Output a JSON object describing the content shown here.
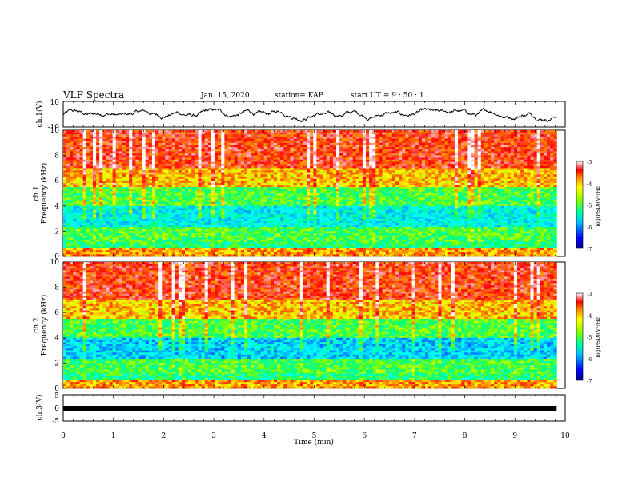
{
  "header": {
    "title": "VLF Spectra",
    "date": "Jan. 15, 2020",
    "station": "station= KAP",
    "start": "start  UT =   9 : 50 : 1"
  },
  "colors": {
    "colormap": [
      "#000080",
      "#0000ff",
      "#00a0ff",
      "#00ffff",
      "#00ff80",
      "#80ff00",
      "#ffff00",
      "#ff8000",
      "#ff0000",
      "#ffffff"
    ],
    "trace": "#000000"
  },
  "chart_data": [
    {
      "type": "line",
      "ylabel": "ch.1(V)",
      "xlim": [
        0,
        10
      ],
      "ylim": [
        -10,
        10
      ],
      "yticks": [
        "10",
        "-10"
      ],
      "note": "continuous waveform, roughly between -5 and 5 V"
    },
    {
      "type": "heatmap",
      "ylabel": "ch.1\nFrequency (kHz)",
      "xlim": [
        0,
        10
      ],
      "ylim": [
        0,
        10
      ],
      "yticks": [
        "0",
        "2",
        "4",
        "6",
        "8",
        "10"
      ],
      "colorbar": {
        "label": "log(PSD)(V²/Hz)",
        "ticks": [
          "-3",
          "-4",
          "-5",
          "-6",
          "-7"
        ],
        "range": [
          -7,
          -3
        ]
      },
      "data_end_min": 9.83
    },
    {
      "type": "heatmap",
      "ylabel": "ch.2\nFrequency (kHz)",
      "xlim": [
        0,
        10
      ],
      "ylim": [
        0,
        10
      ],
      "yticks": [
        "0",
        "2",
        "4",
        "6",
        "8",
        "10"
      ],
      "colorbar": {
        "label": "log(PSD)(V²/Hz)",
        "ticks": [
          "-3",
          "-4",
          "-5",
          "-6",
          "-7"
        ],
        "range": [
          -7,
          -3
        ]
      },
      "data_end_min": 9.83
    },
    {
      "type": "line",
      "ylabel": "ch.3(V)",
      "xlim": [
        0,
        10
      ],
      "ylim": [
        -5,
        5
      ],
      "yticks": [
        "5",
        "0",
        "-5"
      ],
      "note": "constant thick trace near 0 V"
    }
  ],
  "xaxis": {
    "label": "Time (min)",
    "ticks": [
      "0",
      "1",
      "2",
      "3",
      "4",
      "5",
      "6",
      "7",
      "8",
      "9",
      "10"
    ]
  }
}
